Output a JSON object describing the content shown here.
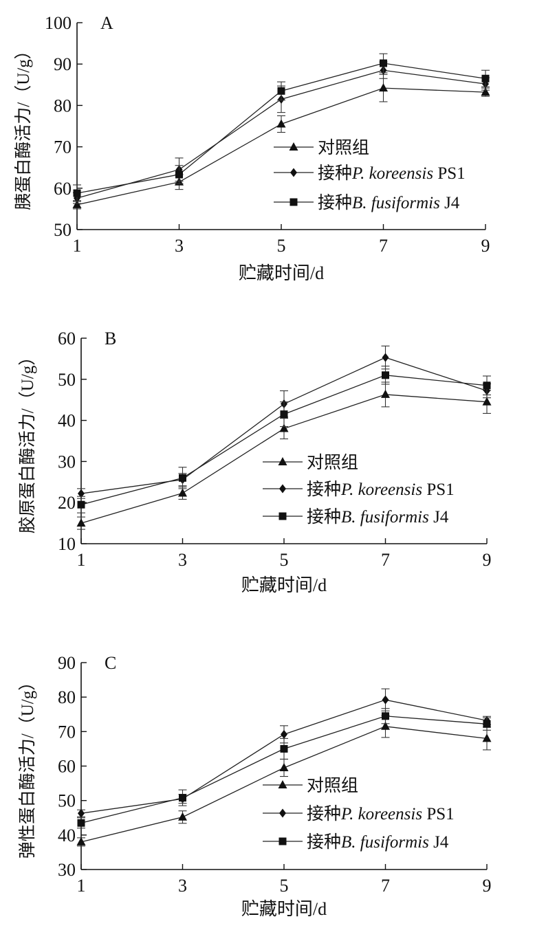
{
  "chart_data": [
    {
      "type": "line",
      "panel": "A",
      "xlabel": "贮藏时间/d",
      "ylabel": "胰蛋白酶活力/（U/g）",
      "x": [
        1,
        3,
        5,
        7,
        9
      ],
      "xticks": [
        "1",
        "3",
        "5",
        "7",
        "9"
      ],
      "xlim": [
        1,
        9
      ],
      "ylim": [
        50,
        100
      ],
      "yticks": [
        "50",
        "60",
        "70",
        "80",
        "90",
        "100"
      ],
      "legend_position": "center-right",
      "series": [
        {
          "name": "对照组",
          "marker": "triangle",
          "values": [
            56,
            61.5,
            75.5,
            84.2,
            83.2
          ],
          "errors": [
            1.0,
            1.8,
            2.0,
            3.3,
            1.0
          ]
        },
        {
          "name": "接种P. koreensis PS1",
          "name_prefix": "接种",
          "name_italic": "P. koreensis",
          "name_suffix": " PS1",
          "marker": "diamond",
          "values": [
            57.6,
            64.5,
            81.5,
            88.5,
            85.2
          ],
          "errors": [
            1.3,
            2.8,
            3.2,
            2.0,
            1.5
          ]
        },
        {
          "name": "接种B. fusiformis J4",
          "name_prefix": "接种",
          "name_italic": "B. fusiformis",
          "name_suffix": " J4",
          "marker": "square",
          "values": [
            58.8,
            63.3,
            83.5,
            90.2,
            86.5
          ],
          "errors": [
            2.0,
            2.2,
            2.2,
            2.3,
            2.0
          ]
        }
      ]
    },
    {
      "type": "line",
      "panel": "B",
      "xlabel": "贮藏时间/d",
      "ylabel": "胶原蛋白酶活力/（U/g）",
      "x": [
        1,
        3,
        5,
        7,
        9
      ],
      "xticks": [
        "1",
        "3",
        "5",
        "7",
        "9"
      ],
      "xlim": [
        1,
        9
      ],
      "ylim": [
        10,
        60
      ],
      "yticks": [
        "10",
        "20",
        "30",
        "40",
        "50",
        "60"
      ],
      "legend_position": "center-right",
      "series": [
        {
          "name": "对照组",
          "marker": "triangle",
          "values": [
            15,
            22.3,
            38,
            46.3,
            44.5
          ],
          "errors": [
            1.5,
            1.5,
            2.5,
            3.0,
            2.8
          ]
        },
        {
          "name": "接种P. koreensis PS1",
          "name_prefix": "接种",
          "name_italic": "P. koreensis",
          "name_suffix": " PS1",
          "marker": "diamond",
          "values": [
            22.2,
            25.6,
            44,
            55.3,
            47.2
          ],
          "errors": [
            1.2,
            1.5,
            3.2,
            2.8,
            1.7
          ]
        },
        {
          "name": "接种B. fusiformis J4",
          "name_prefix": "接种",
          "name_italic": "B. fusiformis",
          "name_suffix": " J4",
          "marker": "square",
          "values": [
            19.5,
            26,
            41.5,
            51,
            48.5
          ],
          "errors": [
            2.0,
            2.6,
            3.0,
            2.2,
            2.3
          ]
        }
      ]
    },
    {
      "type": "line",
      "panel": "C",
      "xlabel": "贮藏时间/d",
      "ylabel": "弹性蛋白酶活力/（U/g）",
      "x": [
        1,
        3,
        5,
        7,
        9
      ],
      "xticks": [
        "1",
        "3",
        "5",
        "7",
        "9"
      ],
      "xlim": [
        1,
        9
      ],
      "ylim": [
        30,
        90
      ],
      "yticks": [
        "30",
        "40",
        "50",
        "60",
        "70",
        "80",
        "90"
      ],
      "legend_position": "center-right",
      "series": [
        {
          "name": "对照组",
          "marker": "triangle",
          "values": [
            38,
            45.2,
            59.5,
            71.5,
            68
          ],
          "errors": [
            1.2,
            1.8,
            2.5,
            3.2,
            3.3
          ]
        },
        {
          "name": "接种P. koreensis PS1",
          "name_prefix": "接种",
          "name_italic": "P. koreensis",
          "name_suffix": " PS1",
          "marker": "diamond",
          "values": [
            46.3,
            50.5,
            69.2,
            79.2,
            73.2
          ],
          "errors": [
            1.0,
            1.3,
            2.5,
            3.2,
            1.2
          ]
        },
        {
          "name": "接种B. fusiformis J4",
          "name_prefix": "接种",
          "name_italic": "B. fusiformis",
          "name_suffix": " J4",
          "marker": "square",
          "values": [
            43.5,
            50.8,
            65,
            74.5,
            72.2
          ],
          "errors": [
            1.5,
            2.3,
            3.0,
            2.2,
            1.8
          ]
        }
      ]
    }
  ]
}
